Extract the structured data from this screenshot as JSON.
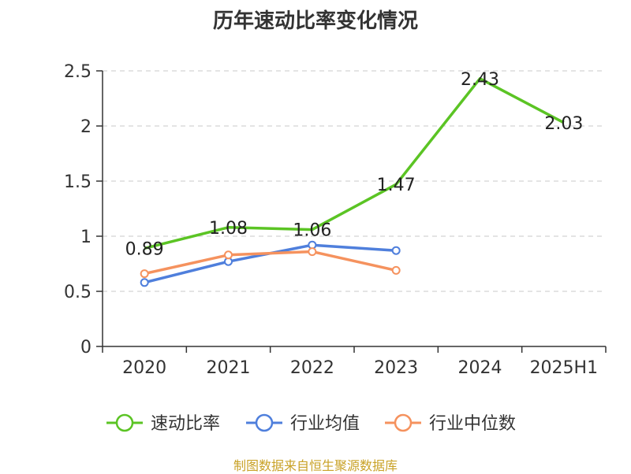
{
  "chart_data": {
    "type": "line",
    "title": "历年速动比率变化情况",
    "categories": [
      "2020",
      "2021",
      "2022",
      "2023",
      "2024",
      "2025H1"
    ],
    "series": [
      {
        "name": "速动比率",
        "color": "#5bc424",
        "values": [
          0.89,
          1.08,
          1.06,
          1.47,
          2.43,
          2.03
        ],
        "labels": [
          "0.89",
          "1.08",
          "1.06",
          "1.47",
          "2.43",
          "2.03"
        ]
      },
      {
        "name": "行业均值",
        "color": "#4f7fdc",
        "values": [
          0.58,
          0.77,
          0.92,
          0.87,
          null,
          null
        ]
      },
      {
        "name": "行业中位数",
        "color": "#f5925e",
        "values": [
          0.66,
          0.83,
          0.86,
          0.69,
          null,
          null
        ]
      }
    ],
    "yticks": [
      "0",
      "0.5",
      "1",
      "1.5",
      "2",
      "2.5"
    ],
    "ylim": [
      0,
      2.5
    ],
    "grid": true,
    "legend": "bottom"
  },
  "footer": "制图数据来自恒生聚源数据库"
}
